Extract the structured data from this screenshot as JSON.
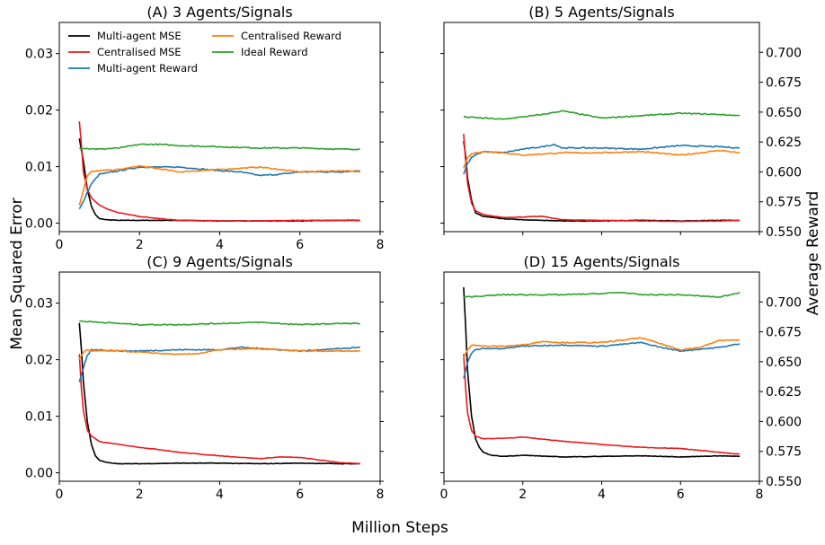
{
  "figure": {
    "y_left_label": "Mean Squared Error",
    "y_right_label": "Average Reward",
    "x_label": "Million Steps"
  },
  "colors": {
    "Multi-agent MSE": "#000000",
    "Centralised MSE": "#e8191d",
    "Multi-agent Reward": "#1f77b4",
    "Centralised Reward": "#ff7f0e",
    "Ideal Reward": "#2ca02c"
  },
  "legend": {
    "placement": "top-left of panel A",
    "entries": [
      "Multi-agent MSE",
      "Centralised MSE",
      "Multi-agent Reward",
      "Centralised Reward",
      "Ideal Reward"
    ]
  },
  "chart_data": [
    {
      "type": "line",
      "title": "(A) 3 Agents/Signals",
      "x_ticks": [
        "0",
        "2",
        "4",
        "6",
        "8"
      ],
      "y_left_ticks": [
        "0.00",
        "0.01",
        "0.02",
        "0.03"
      ],
      "y_right_ticks": [],
      "xlim": [
        0,
        8
      ],
      "ylim_left": [
        -0.0015,
        0.0355
      ],
      "ylim_right": [
        0.55,
        0.725
      ],
      "series": [
        {
          "name": "Multi-agent MSE",
          "axis": "left",
          "x": [
            0.5,
            0.6,
            0.7,
            0.8,
            0.9,
            1.0,
            1.2,
            1.5,
            2.0,
            3.0,
            4.0,
            5.0,
            6.0,
            7.0,
            7.5
          ],
          "y": [
            0.015,
            0.011,
            0.006,
            0.003,
            0.0015,
            0.0008,
            0.0006,
            0.0005,
            0.0005,
            0.0005,
            0.0004,
            0.0004,
            0.0004,
            0.0005,
            0.0005
          ]
        },
        {
          "name": "Centralised MSE",
          "axis": "left",
          "x": [
            0.5,
            0.55,
            0.6,
            0.7,
            0.8,
            0.9,
            1.0,
            1.2,
            1.5,
            2.0,
            2.5,
            3.0,
            4.0,
            5.0,
            6.0,
            7.0,
            7.5
          ],
          "y": [
            0.018,
            0.014,
            0.009,
            0.006,
            0.0045,
            0.0038,
            0.0032,
            0.0025,
            0.0018,
            0.0012,
            0.0008,
            0.0005,
            0.0004,
            0.0004,
            0.0005,
            0.0005,
            0.0005
          ]
        },
        {
          "name": "Multi-agent Reward",
          "axis": "right",
          "x": [
            0.5,
            0.6,
            0.7,
            0.8,
            1.0,
            1.5,
            2.0,
            3.0,
            4.0,
            4.5,
            5.0,
            5.5,
            6.0,
            7.0,
            7.5
          ],
          "y": [
            0.569,
            0.575,
            0.583,
            0.59,
            0.598,
            0.601,
            0.604,
            0.604,
            0.601,
            0.6,
            0.597,
            0.598,
            0.6,
            0.6,
            0.601
          ]
        },
        {
          "name": "Centralised Reward",
          "axis": "right",
          "x": [
            0.5,
            0.6,
            0.7,
            0.8,
            1.0,
            1.5,
            2.0,
            3.0,
            4.0,
            5.0,
            6.0,
            7.0,
            7.5
          ],
          "y": [
            0.572,
            0.585,
            0.597,
            0.6,
            0.601,
            0.602,
            0.605,
            0.6,
            0.602,
            0.604,
            0.6,
            0.601,
            0.6
          ]
        },
        {
          "name": "Ideal Reward",
          "axis": "right",
          "x": [
            0.5,
            1.0,
            1.5,
            2.0,
            2.5,
            3.0,
            4.0,
            5.0,
            6.0,
            7.0,
            7.5
          ],
          "y": [
            0.62,
            0.619,
            0.62,
            0.623,
            0.623,
            0.622,
            0.621,
            0.62,
            0.62,
            0.619,
            0.619
          ]
        }
      ]
    },
    {
      "type": "line",
      "title": "(B) 5 Agents/Signals",
      "x_ticks": [],
      "y_left_ticks": [],
      "y_right_ticks": [
        "0.550",
        "0.575",
        "0.600",
        "0.625",
        "0.650",
        "0.675",
        "0.700"
      ],
      "xlim": [
        0,
        8
      ],
      "ylim_left": [
        -0.0015,
        0.0355
      ],
      "ylim_right": [
        0.55,
        0.725
      ],
      "series": [
        {
          "name": "Multi-agent MSE",
          "axis": "left",
          "x": [
            0.5,
            0.55,
            0.6,
            0.7,
            0.8,
            1.0,
            1.5,
            2.0,
            3.0,
            4.0,
            5.0,
            6.0,
            7.0,
            7.5
          ],
          "y": [
            0.0145,
            0.012,
            0.008,
            0.004,
            0.0018,
            0.0012,
            0.0008,
            0.0006,
            0.0004,
            0.0004,
            0.0005,
            0.0004,
            0.0005,
            0.0005
          ]
        },
        {
          "name": "Centralised MSE",
          "axis": "left",
          "x": [
            0.5,
            0.55,
            0.6,
            0.7,
            0.8,
            1.0,
            1.5,
            2.0,
            2.5,
            3.0,
            4.0,
            5.0,
            6.0,
            7.0,
            7.5
          ],
          "y": [
            0.0158,
            0.011,
            0.007,
            0.0035,
            0.0022,
            0.0015,
            0.001,
            0.0011,
            0.0012,
            0.0006,
            0.0005,
            0.0004,
            0.0003,
            0.0004,
            0.0005
          ]
        },
        {
          "name": "Multi-agent Reward",
          "axis": "right",
          "x": [
            0.5,
            0.6,
            0.7,
            0.8,
            1.0,
            1.5,
            2.0,
            2.5,
            2.8,
            3.0,
            4.0,
            5.0,
            6.0,
            7.0,
            7.5
          ],
          "y": [
            0.598,
            0.607,
            0.612,
            0.614,
            0.617,
            0.616,
            0.619,
            0.621,
            0.623,
            0.62,
            0.62,
            0.619,
            0.622,
            0.621,
            0.62
          ]
        },
        {
          "name": "Centralised Reward",
          "axis": "right",
          "x": [
            0.5,
            0.6,
            0.7,
            0.8,
            1.0,
            1.5,
            2.0,
            3.0,
            4.0,
            5.0,
            6.0,
            7.0,
            7.5
          ],
          "y": [
            0.603,
            0.612,
            0.615,
            0.616,
            0.617,
            0.616,
            0.614,
            0.616,
            0.616,
            0.617,
            0.614,
            0.618,
            0.616
          ]
        },
        {
          "name": "Ideal Reward",
          "axis": "right",
          "x": [
            0.5,
            1.0,
            1.5,
            2.0,
            2.5,
            3.0,
            3.5,
            4.0,
            5.0,
            6.0,
            7.0,
            7.5
          ],
          "y": [
            0.646,
            0.645,
            0.644,
            0.646,
            0.648,
            0.651,
            0.648,
            0.645,
            0.647,
            0.649,
            0.648,
            0.647
          ]
        }
      ]
    },
    {
      "type": "line",
      "title": "(C) 9 Agents/Signals",
      "x_ticks": [
        "0",
        "2",
        "4",
        "6",
        "8"
      ],
      "y_left_ticks": [
        "0.00",
        "0.01",
        "0.02",
        "0.03"
      ],
      "y_right_ticks": [],
      "xlim": [
        0,
        8
      ],
      "ylim_left": [
        -0.0015,
        0.0355
      ],
      "ylim_right": [
        0.55,
        0.725
      ],
      "series": [
        {
          "name": "Multi-agent MSE",
          "axis": "left",
          "x": [
            0.5,
            0.55,
            0.6,
            0.7,
            0.8,
            0.9,
            1.0,
            1.2,
            1.5,
            2.0,
            3.0,
            4.0,
            5.0,
            6.0,
            7.0,
            7.5
          ],
          "y": [
            0.0265,
            0.022,
            0.016,
            0.009,
            0.005,
            0.003,
            0.0022,
            0.0018,
            0.0016,
            0.0016,
            0.0017,
            0.0017,
            0.0016,
            0.0017,
            0.0016,
            0.0016
          ]
        },
        {
          "name": "Centralised MSE",
          "axis": "left",
          "x": [
            0.5,
            0.55,
            0.6,
            0.7,
            0.8,
            1.0,
            1.5,
            2.0,
            2.5,
            3.0,
            4.0,
            5.0,
            5.5,
            6.0,
            7.0,
            7.5
          ],
          "y": [
            0.021,
            0.015,
            0.011,
            0.0075,
            0.0065,
            0.0055,
            0.005,
            0.0045,
            0.0041,
            0.0036,
            0.003,
            0.0025,
            0.0028,
            0.0027,
            0.0018,
            0.0016
          ]
        },
        {
          "name": "Multi-agent Reward",
          "axis": "right",
          "x": [
            0.5,
            0.6,
            0.7,
            0.8,
            1.0,
            1.5,
            2.0,
            3.0,
            4.0,
            4.5,
            5.0,
            6.0,
            7.0,
            7.5
          ],
          "y": [
            0.633,
            0.645,
            0.655,
            0.66,
            0.66,
            0.659,
            0.659,
            0.66,
            0.66,
            0.662,
            0.661,
            0.659,
            0.661,
            0.662
          ]
        },
        {
          "name": "Centralised Reward",
          "axis": "right",
          "x": [
            0.5,
            0.6,
            0.7,
            0.8,
            1.0,
            1.5,
            2.0,
            2.5,
            3.0,
            3.5,
            4.0,
            5.0,
            6.0,
            7.0,
            7.5
          ],
          "y": [
            0.652,
            0.658,
            0.66,
            0.659,
            0.659,
            0.659,
            0.658,
            0.657,
            0.656,
            0.657,
            0.66,
            0.661,
            0.659,
            0.659,
            0.659
          ]
        },
        {
          "name": "Ideal Reward",
          "axis": "right",
          "x": [
            0.5,
            1.0,
            1.5,
            2.0,
            3.0,
            4.0,
            5.0,
            6.0,
            7.0,
            7.5
          ],
          "y": [
            0.684,
            0.683,
            0.682,
            0.681,
            0.681,
            0.682,
            0.683,
            0.681,
            0.682,
            0.682
          ]
        }
      ]
    },
    {
      "type": "line",
      "title": "(D) 15 Agents/Signals",
      "x_ticks": [
        "0",
        "2",
        "4",
        "6",
        "8"
      ],
      "y_left_ticks": [],
      "y_right_ticks": [
        "0.550",
        "0.575",
        "0.600",
        "0.625",
        "0.650",
        "0.675",
        "0.700"
      ],
      "xlim": [
        0,
        8
      ],
      "ylim_left": [
        -0.0015,
        0.0355
      ],
      "ylim_right": [
        0.55,
        0.725
      ],
      "series": [
        {
          "name": "Multi-agent MSE",
          "axis": "left",
          "x": [
            0.5,
            0.55,
            0.6,
            0.7,
            0.8,
            0.9,
            1.0,
            1.2,
            1.5,
            2.0,
            3.0,
            4.0,
            5.0,
            6.0,
            7.0,
            7.5
          ],
          "y": [
            0.0328,
            0.026,
            0.018,
            0.01,
            0.006,
            0.0045,
            0.0036,
            0.0031,
            0.0029,
            0.0031,
            0.0028,
            0.0029,
            0.003,
            0.0028,
            0.003,
            0.0029
          ]
        },
        {
          "name": "Centralised MSE",
          "axis": "left",
          "x": [
            0.5,
            0.55,
            0.6,
            0.7,
            0.8,
            1.0,
            1.5,
            2.0,
            3.0,
            4.0,
            5.0,
            6.0,
            7.0,
            7.5
          ],
          "y": [
            0.021,
            0.015,
            0.0105,
            0.0075,
            0.0065,
            0.006,
            0.0061,
            0.0063,
            0.0056,
            0.005,
            0.0045,
            0.0043,
            0.0036,
            0.0033
          ]
        },
        {
          "name": "Multi-agent Reward",
          "axis": "right",
          "x": [
            0.5,
            0.6,
            0.7,
            0.8,
            1.0,
            1.5,
            2.0,
            3.0,
            4.0,
            5.0,
            5.5,
            6.0,
            7.0,
            7.5
          ],
          "y": [
            0.636,
            0.65,
            0.657,
            0.66,
            0.661,
            0.661,
            0.663,
            0.664,
            0.663,
            0.666,
            0.662,
            0.659,
            0.662,
            0.665
          ]
        },
        {
          "name": "Centralised Reward",
          "axis": "right",
          "x": [
            0.5,
            0.6,
            0.7,
            0.8,
            1.0,
            1.5,
            2.0,
            2.5,
            3.0,
            4.0,
            5.0,
            5.5,
            6.0,
            6.5,
            7.0,
            7.5
          ],
          "y": [
            0.653,
            0.66,
            0.664,
            0.664,
            0.663,
            0.663,
            0.664,
            0.667,
            0.666,
            0.666,
            0.67,
            0.665,
            0.66,
            0.662,
            0.668,
            0.668
          ]
        },
        {
          "name": "Ideal Reward",
          "axis": "right",
          "x": [
            0.5,
            1.0,
            1.5,
            2.0,
            3.0,
            4.0,
            4.5,
            5.0,
            6.0,
            7.0,
            7.5
          ],
          "y": [
            0.704,
            0.705,
            0.706,
            0.706,
            0.706,
            0.707,
            0.708,
            0.706,
            0.706,
            0.704,
            0.708
          ]
        }
      ]
    }
  ]
}
